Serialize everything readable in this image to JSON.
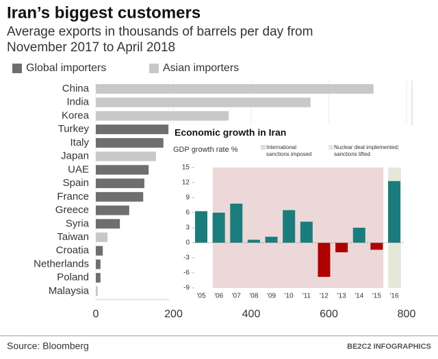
{
  "chart_data": [
    {
      "type": "barh",
      "title": "Iran’s biggest customers",
      "subtitle": [
        "Average exports in thousands of barrels per day from",
        "November 2017 to April 2018"
      ],
      "categories": [
        "China",
        "India",
        "Korea",
        "Turkey",
        "Italy",
        "Japan",
        "UAE",
        "Spain",
        "France",
        "Greece",
        "Syria",
        "Taiwan",
        "Croatia",
        "Netherlands",
        "Poland",
        "Malaysia"
      ],
      "series": [
        {
          "name": "Global importers",
          "color": "#6e6e6e",
          "values": [
            null,
            null,
            null,
            187,
            174,
            null,
            136,
            125,
            122,
            86,
            62,
            null,
            18,
            12,
            12,
            null
          ]
        },
        {
          "name": "Asian importers",
          "color": "#c8c8c8",
          "values": [
            715,
            553,
            342,
            null,
            null,
            155,
            null,
            null,
            null,
            null,
            null,
            30,
            null,
            null,
            null,
            5
          ]
        }
      ],
      "xlim": [
        0,
        800
      ],
      "xticks": [
        0,
        200,
        400,
        600,
        800
      ],
      "grid": true
    },
    {
      "type": "bar",
      "title": "Economic growth in Iran",
      "y_label": "GDP growth rate %",
      "categories": [
        "'05",
        "'06",
        "'07",
        "'08",
        "'09",
        "'10",
        "'11",
        "'12",
        "'13",
        "'14",
        "'15",
        "'16"
      ],
      "values": [
        6.3,
        6.0,
        7.8,
        0.6,
        1.2,
        6.5,
        4.2,
        -6.8,
        -1.9,
        3.0,
        -1.4,
        12.3
      ],
      "positive_color": "#1a7d7d",
      "negative_color": "#b00000",
      "ylim": [
        -9,
        15
      ],
      "yticks": [
        -9,
        -6,
        -3,
        0,
        3,
        6,
        9,
        12,
        15
      ],
      "regions": [
        {
          "label": [
            "International",
            "sanctions imposed"
          ],
          "from": 1,
          "to": 10,
          "color": "#ecd8d8"
        },
        {
          "label": [
            "Nuclear deal implemented;",
            "sanctions lifted"
          ],
          "from": 11,
          "to": 11,
          "color": "#e3e8d8"
        }
      ]
    }
  ],
  "source": "Source: Bloomberg",
  "credit": "BE2C2 INFOGRAPHICS"
}
